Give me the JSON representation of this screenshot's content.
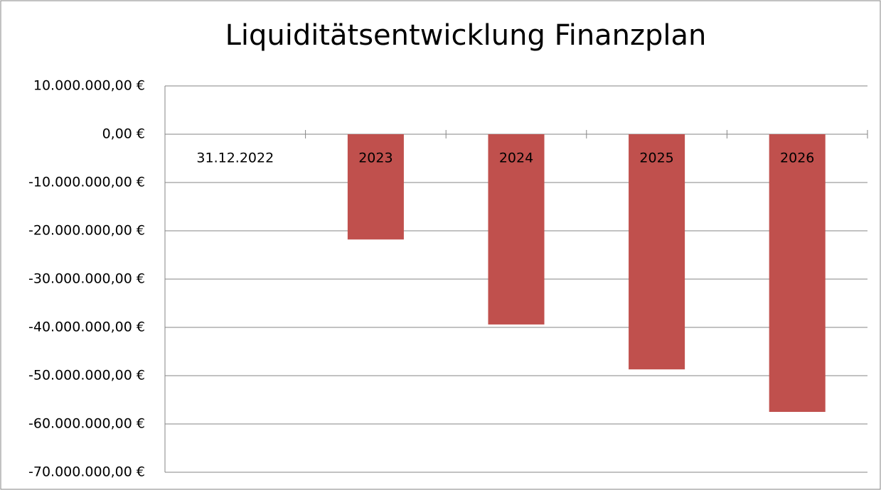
{
  "chart_data": {
    "type": "bar",
    "title": "Liquiditätsentwicklung Finanzplan",
    "categories": [
      "31.12.2022",
      "2023",
      "2024",
      "2025",
      "2026"
    ],
    "values": [
      0,
      -21800000,
      -39400000,
      -48700000,
      -57500000
    ],
    "color": "#c0504d",
    "ylim": [
      -70000000,
      10000000
    ],
    "yticks": [
      {
        "value": 10000000,
        "label": "10.000.000,00 €"
      },
      {
        "value": 0,
        "label": "0,00 €"
      },
      {
        "value": -10000000,
        "label": "-10.000.000,00 €"
      },
      {
        "value": -20000000,
        "label": "-20.000.000,00 €"
      },
      {
        "value": -30000000,
        "label": "-30.000.000,00 €"
      },
      {
        "value": -40000000,
        "label": "-40.000.000,00 €"
      },
      {
        "value": -50000000,
        "label": "-50.000.000,00 €"
      },
      {
        "value": -60000000,
        "label": "-60.000.000,00 €"
      },
      {
        "value": -70000000,
        "label": "-70.000.000,00 €"
      }
    ],
    "grid": true
  }
}
